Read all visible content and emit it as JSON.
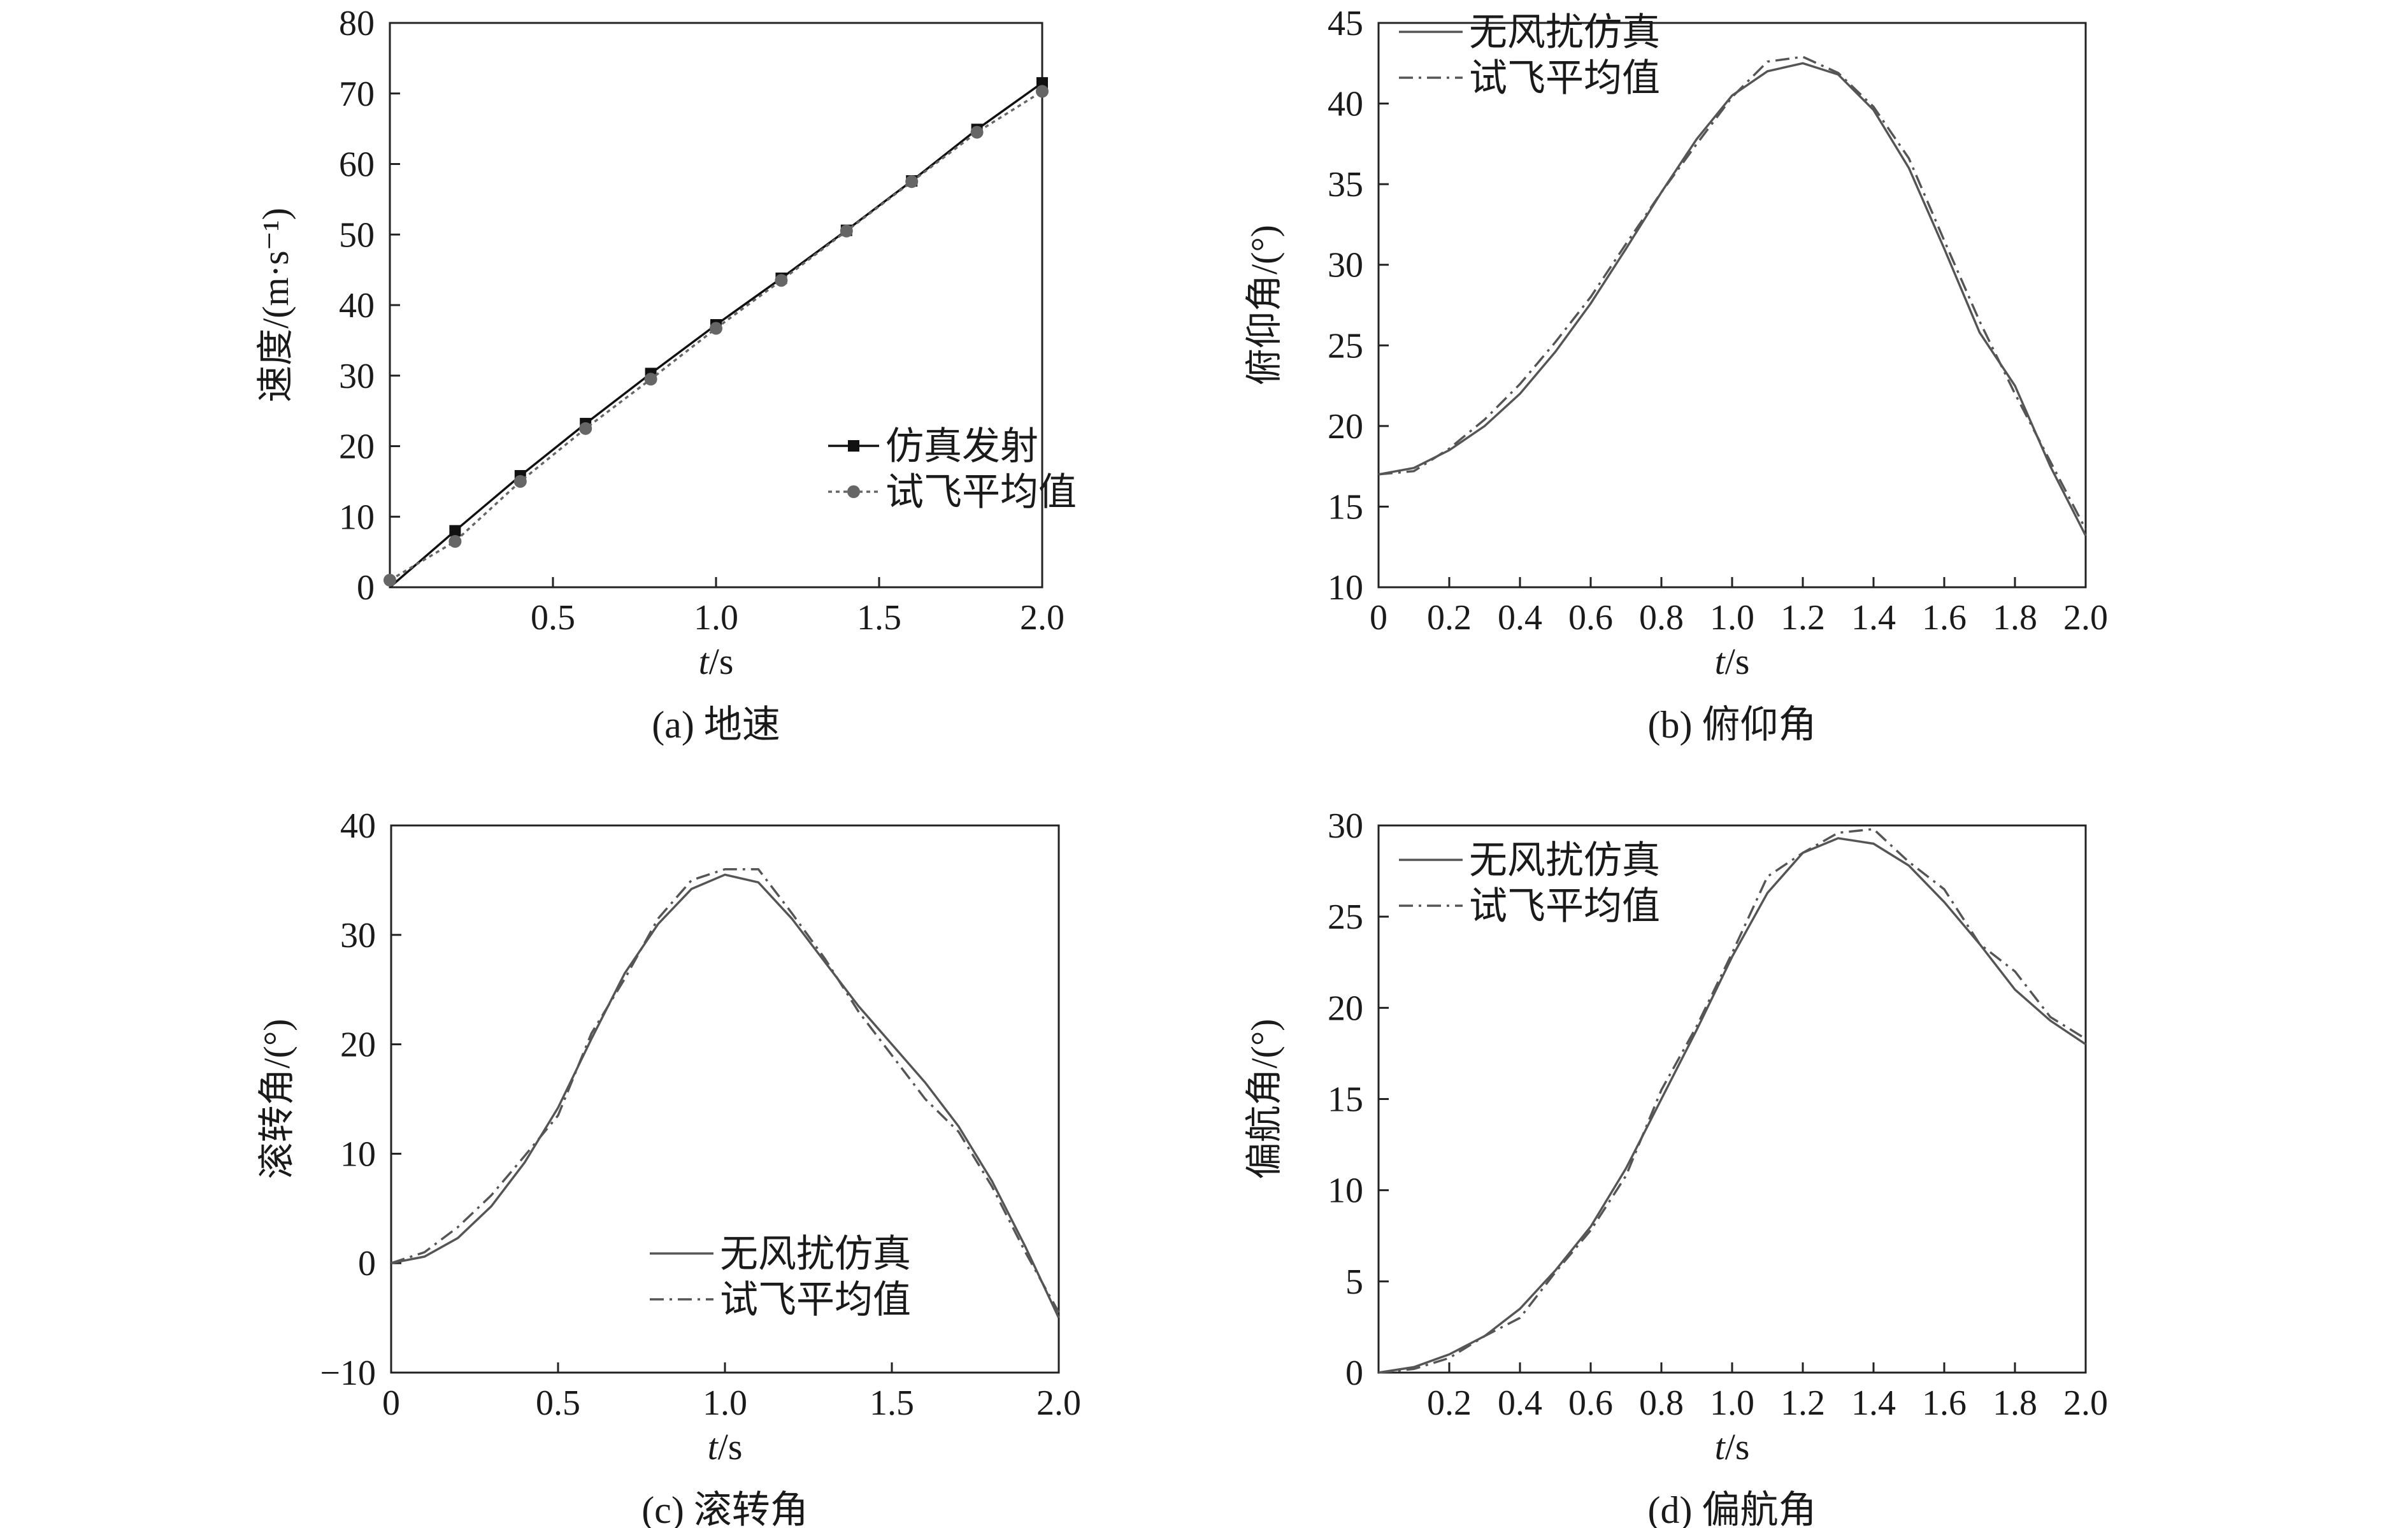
{
  "chart_data": [
    {
      "id": "a",
      "type": "line",
      "caption": "(a) 地速",
      "xlabel_italic": "t",
      "xlabel_unit": "/s",
      "ylabel": "速度/(m·s⁻¹)",
      "xlim": [
        0,
        2.0
      ],
      "ylim": [
        0,
        80
      ],
      "xticks": [
        0.5,
        1.0,
        1.5,
        2.0
      ],
      "xtick_labels": [
        "0.5",
        "1.0",
        "1.5",
        "2.0"
      ],
      "yticks": [
        0,
        10,
        20,
        30,
        40,
        50,
        60,
        70,
        80
      ],
      "ytick_labels": [
        "0",
        "10",
        "20",
        "30",
        "40",
        "50",
        "60",
        "70",
        "80"
      ],
      "legend_position": "center-right",
      "series": [
        {
          "name": "仿真发射",
          "style": "solid-square",
          "color": "#111111",
          "x": [
            0,
            0.2,
            0.4,
            0.6,
            0.8,
            1.0,
            1.2,
            1.4,
            1.6,
            1.8,
            2.0
          ],
          "y": [
            0,
            8.0,
            15.8,
            23.2,
            30.3,
            37.2,
            43.8,
            50.6,
            57.6,
            64.9,
            71.5
          ]
        },
        {
          "name": "试飞平均值",
          "style": "dotted-circle",
          "color": "#666666",
          "x": [
            0,
            0.2,
            0.4,
            0.6,
            0.8,
            1.0,
            1.2,
            1.4,
            1.6,
            1.8,
            2.0
          ],
          "y": [
            1.0,
            6.5,
            15.0,
            22.5,
            29.5,
            36.7,
            43.5,
            50.5,
            57.5,
            64.5,
            70.3
          ]
        }
      ]
    },
    {
      "id": "b",
      "type": "line",
      "caption": "(b) 俯仰角",
      "xlabel_italic": "t",
      "xlabel_unit": "/s",
      "ylabel": "俯仰角/(°)",
      "xlim": [
        0,
        2.0
      ],
      "ylim": [
        10,
        45
      ],
      "xticks": [
        0,
        0.2,
        0.4,
        0.6,
        0.8,
        1.0,
        1.2,
        1.4,
        1.6,
        1.8,
        2.0
      ],
      "xtick_labels": [
        "0",
        "0.2",
        "0.4",
        "0.6",
        "0.8",
        "1.0",
        "1.2",
        "1.4",
        "1.6",
        "1.8",
        "2.0"
      ],
      "yticks": [
        10,
        15,
        20,
        25,
        30,
        35,
        40,
        45
      ],
      "ytick_labels": [
        "10",
        "15",
        "20",
        "25",
        "30",
        "35",
        "40",
        "45"
      ],
      "legend_position": "top-left",
      "series": [
        {
          "name": "无风扰仿真",
          "style": "solid",
          "color": "#555555",
          "x": [
            0,
            0.1,
            0.2,
            0.3,
            0.4,
            0.5,
            0.6,
            0.7,
            0.8,
            0.9,
            1.0,
            1.1,
            1.2,
            1.3,
            1.4,
            1.5,
            1.6,
            1.7,
            1.8,
            1.9,
            2.0
          ],
          "y": [
            17.0,
            17.4,
            18.5,
            20.0,
            22.0,
            24.6,
            27.6,
            31.0,
            34.5,
            37.8,
            40.5,
            42.0,
            42.5,
            41.8,
            39.6,
            36.0,
            31.0,
            25.8,
            22.5,
            17.5,
            13.2
          ]
        },
        {
          "name": "试飞平均值",
          "style": "dash-dot",
          "color": "#555555",
          "x": [
            0,
            0.1,
            0.2,
            0.3,
            0.4,
            0.5,
            0.6,
            0.7,
            0.8,
            0.9,
            1.0,
            1.1,
            1.2,
            1.3,
            1.4,
            1.5,
            1.6,
            1.7,
            1.8,
            1.9,
            2.0
          ],
          "y": [
            17.0,
            17.2,
            18.6,
            20.4,
            22.6,
            25.2,
            28.0,
            31.3,
            34.5,
            37.5,
            40.4,
            42.6,
            42.9,
            41.9,
            39.8,
            36.6,
            31.5,
            26.5,
            22.0,
            17.8,
            13.6
          ]
        }
      ]
    },
    {
      "id": "c",
      "type": "line",
      "caption": "(c) 滚转角",
      "xlabel_italic": "t",
      "xlabel_unit": "/s",
      "ylabel": "滚转角/(°)",
      "xlim": [
        0,
        2.0
      ],
      "ylim": [
        -10,
        40
      ],
      "xticks": [
        0,
        0.5,
        1.0,
        1.5,
        2.0
      ],
      "xtick_labels": [
        "0",
        "0.5",
        "1.0",
        "1.5",
        "2.0"
      ],
      "yticks": [
        -10,
        0,
        10,
        20,
        30,
        40
      ],
      "ytick_labels": [
        "−10",
        "0",
        "10",
        "20",
        "30",
        "40"
      ],
      "legend_position": "bottom-center",
      "series": [
        {
          "name": "无风扰仿真",
          "style": "solid",
          "color": "#555555",
          "x": [
            0,
            0.1,
            0.2,
            0.3,
            0.4,
            0.5,
            0.6,
            0.7,
            0.8,
            0.9,
            1.0,
            1.1,
            1.2,
            1.3,
            1.4,
            1.5,
            1.6,
            1.7,
            1.8,
            1.9,
            2.0
          ],
          "y": [
            0,
            0.6,
            2.3,
            5.2,
            9.2,
            14.2,
            20.5,
            26.5,
            31.0,
            34.2,
            35.5,
            34.8,
            31.5,
            27.5,
            23.5,
            20.0,
            16.5,
            12.5,
            7.5,
            1.5,
            -5.0
          ]
        },
        {
          "name": "试飞平均值",
          "style": "dash-dot",
          "color": "#555555",
          "x": [
            0,
            0.1,
            0.2,
            0.3,
            0.4,
            0.5,
            0.6,
            0.7,
            0.8,
            0.9,
            1.0,
            1.1,
            1.2,
            1.3,
            1.4,
            1.5,
            1.6,
            1.7,
            1.8,
            1.9,
            2.0
          ],
          "y": [
            0,
            1.0,
            3.3,
            6.2,
            9.8,
            13.5,
            21.0,
            26.0,
            31.5,
            35.0,
            36.0,
            36.0,
            32.0,
            27.8,
            23.0,
            19.0,
            15.0,
            12.0,
            7.0,
            1.0,
            -4.5
          ]
        }
      ]
    },
    {
      "id": "d",
      "type": "line",
      "caption": "(d) 偏航角",
      "xlabel_italic": "t",
      "xlabel_unit": "/s",
      "ylabel": "偏航角/(°)",
      "xlim": [
        0,
        2.0
      ],
      "ylim": [
        0,
        30
      ],
      "xticks": [
        0.2,
        0.4,
        0.6,
        0.8,
        1.0,
        1.2,
        1.4,
        1.6,
        1.8,
        2.0
      ],
      "xtick_labels": [
        "0.2",
        "0.4",
        "0.6",
        "0.8",
        "1.0",
        "1.2",
        "1.4",
        "1.6",
        "1.8",
        "2.0"
      ],
      "yticks": [
        0,
        5,
        10,
        15,
        20,
        25,
        30
      ],
      "ytick_labels": [
        "0",
        "5",
        "10",
        "15",
        "20",
        "25",
        "30"
      ],
      "legend_position": "top-left",
      "series": [
        {
          "name": "无风扰仿真",
          "style": "solid",
          "color": "#555555",
          "x": [
            0,
            0.1,
            0.2,
            0.3,
            0.4,
            0.5,
            0.6,
            0.7,
            0.8,
            0.9,
            1.0,
            1.1,
            1.2,
            1.3,
            1.4,
            1.5,
            1.6,
            1.7,
            1.8,
            1.9,
            2.0
          ],
          "y": [
            0,
            0.3,
            1.0,
            2.0,
            3.5,
            5.6,
            8.0,
            11.2,
            15.0,
            18.8,
            22.8,
            26.3,
            28.5,
            29.3,
            29.0,
            27.8,
            25.8,
            23.5,
            21.0,
            19.3,
            18.0
          ]
        },
        {
          "name": "试飞平均值",
          "style": "dash-dot",
          "color": "#555555",
          "x": [
            0,
            0.1,
            0.2,
            0.3,
            0.4,
            0.5,
            0.6,
            0.7,
            0.8,
            0.9,
            1.0,
            1.1,
            1.2,
            1.3,
            1.4,
            1.5,
            1.6,
            1.7,
            1.8,
            1.9,
            2.0
          ],
          "y": [
            0,
            0.2,
            0.8,
            2.0,
            3.0,
            5.5,
            7.8,
            10.8,
            15.5,
            19.0,
            23.0,
            27.2,
            28.5,
            29.6,
            29.8,
            28.0,
            26.5,
            23.5,
            22.0,
            19.5,
            18.3
          ]
        }
      ]
    }
  ]
}
